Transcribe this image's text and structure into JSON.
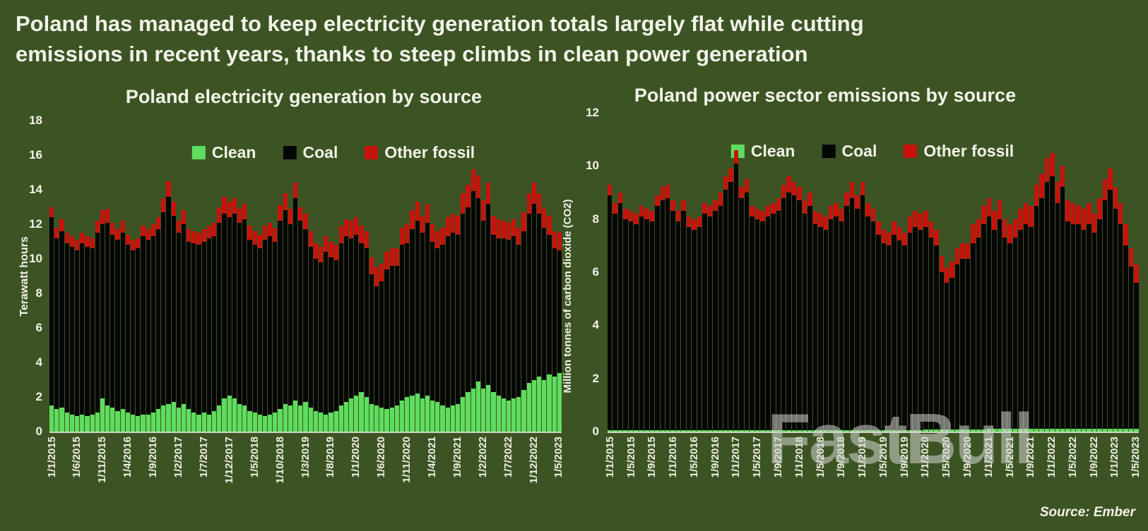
{
  "title": {
    "line1": "Poland has managed to keep electricity generation totals largely flat while cutting",
    "line2": "emissions in recent years, thanks to steep climbs in clean power generation"
  },
  "watermark": "FastBull",
  "source": "Source: Ember",
  "colors": {
    "background": "#3c5424",
    "clean": "#5edd5e",
    "coal": "#060606",
    "other": "#c8130c",
    "text": "#f2f3e9"
  },
  "chart_data": [
    {
      "type": "bar",
      "stacked": true,
      "title": "Poland electricity generation by source",
      "ylabel": "Terawatt hours",
      "xlabel": "",
      "ylim": [
        0,
        18
      ],
      "yticks": [
        0,
        2,
        4,
        6,
        8,
        10,
        12,
        14,
        16,
        18
      ],
      "grid": false,
      "legend_position": "top-center",
      "legend": [
        "Clean",
        "Coal",
        "Other fossil"
      ],
      "xtick_every": 5,
      "categories": [
        "1/1/2015",
        "1/2/2015",
        "1/3/2015",
        "1/4/2015",
        "1/5/2015",
        "1/6/2015",
        "1/7/2015",
        "1/8/2015",
        "1/9/2015",
        "1/10/2015",
        "1/11/2015",
        "1/12/2015",
        "1/1/2016",
        "1/2/2016",
        "1/3/2016",
        "1/4/2016",
        "1/5/2016",
        "1/6/2016",
        "1/7/2016",
        "1/8/2016",
        "1/9/2016",
        "1/10/2016",
        "1/11/2016",
        "1/12/2016",
        "1/1/2017",
        "1/2/2017",
        "1/3/2017",
        "1/4/2017",
        "1/5/2017",
        "1/6/2017",
        "1/7/2017",
        "1/8/2017",
        "1/9/2017",
        "1/10/2017",
        "1/11/2017",
        "1/12/2017",
        "1/1/2018",
        "1/2/2018",
        "1/3/2018",
        "1/4/2018",
        "1/5/2018",
        "1/6/2018",
        "1/7/2018",
        "1/8/2018",
        "1/9/2018",
        "1/10/2018",
        "1/11/2018",
        "1/12/2018",
        "1/1/2019",
        "1/2/2019",
        "1/3/2019",
        "1/4/2019",
        "1/5/2019",
        "1/6/2019",
        "1/7/2019",
        "1/8/2019",
        "1/9/2019",
        "1/10/2019",
        "1/11/2019",
        "1/12/2019",
        "1/1/2020",
        "1/2/2020",
        "1/3/2020",
        "1/4/2020",
        "1/5/2020",
        "1/6/2020",
        "1/7/2020",
        "1/8/2020",
        "1/9/2020",
        "1/10/2020",
        "1/11/2020",
        "1/12/2020",
        "1/1/2021",
        "1/2/2021",
        "1/3/2021",
        "1/4/2021",
        "1/5/2021",
        "1/6/2021",
        "1/7/2021",
        "1/8/2021",
        "1/9/2021",
        "1/10/2021",
        "1/11/2021",
        "1/12/2021",
        "1/1/2022",
        "1/2/2022",
        "1/3/2022",
        "1/4/2022",
        "1/5/2022",
        "1/6/2022",
        "1/7/2022",
        "1/8/2022",
        "1/9/2022",
        "1/10/2022",
        "1/11/2022",
        "1/12/2022",
        "1/1/2023",
        "1/2/2023",
        "1/3/2023",
        "1/4/2023",
        "1/5/2023"
      ],
      "series": [
        {
          "name": "Clean",
          "color_key": "clean",
          "values": [
            1.5,
            1.3,
            1.4,
            1.1,
            1.0,
            0.9,
            1.0,
            0.9,
            1.0,
            1.1,
            1.9,
            1.5,
            1.4,
            1.2,
            1.3,
            1.1,
            1.0,
            0.9,
            1.0,
            1.0,
            1.1,
            1.3,
            1.5,
            1.6,
            1.7,
            1.4,
            1.6,
            1.3,
            1.1,
            1.0,
            1.1,
            1.0,
            1.2,
            1.5,
            1.9,
            2.1,
            1.9,
            1.6,
            1.5,
            1.2,
            1.1,
            1.0,
            0.9,
            1.0,
            1.1,
            1.3,
            1.6,
            1.5,
            1.8,
            1.5,
            1.7,
            1.4,
            1.2,
            1.1,
            1.0,
            1.1,
            1.2,
            1.5,
            1.7,
            1.9,
            2.1,
            2.3,
            2.0,
            1.6,
            1.5,
            1.4,
            1.3,
            1.4,
            1.5,
            1.8,
            2.0,
            2.1,
            2.2,
            1.9,
            2.1,
            1.8,
            1.7,
            1.5,
            1.4,
            1.5,
            1.6,
            2.0,
            2.3,
            2.5,
            2.9,
            2.5,
            2.7,
            2.3,
            2.1,
            1.9,
            1.8,
            1.9,
            2.0,
            2.4,
            2.8,
            3.0,
            3.2,
            3.0,
            3.3,
            3.2,
            3.4
          ]
        },
        {
          "name": "Coal",
          "color_key": "coal",
          "values": [
            10.9,
            9.9,
            10.2,
            9.8,
            9.7,
            9.6,
            9.9,
            9.8,
            9.6,
            10.4,
            10.1,
            10.6,
            10.0,
            9.9,
            10.2,
            9.7,
            9.5,
            9.7,
            10.3,
            10.1,
            10.2,
            10.4,
            11.2,
            12.0,
            10.8,
            10.1,
            10.4,
            9.7,
            9.8,
            9.8,
            9.9,
            10.2,
            10.1,
            10.6,
            10.7,
            10.3,
            10.7,
            10.5,
            10.8,
            9.9,
            9.7,
            9.6,
            10.2,
            10.3,
            9.9,
            10.9,
            11.2,
            10.5,
            11.7,
            10.7,
            10.0,
            9.3,
            8.8,
            8.7,
            9.4,
            9.0,
            8.7,
            9.4,
            9.6,
            9.3,
            9.3,
            8.6,
            8.6,
            7.5,
            6.9,
            7.3,
            8.1,
            8.2,
            8.1,
            9.0,
            8.9,
            9.6,
            10.0,
            9.6,
            10.0,
            9.2,
            8.9,
            9.3,
            9.9,
            10.0,
            9.8,
            10.6,
            10.7,
            11.4,
            10.6,
            9.7,
            10.5,
            9.1,
            9.1,
            9.3,
            9.3,
            9.4,
            8.8,
            9.2,
            9.8,
            10.2,
            9.4,
            8.8,
            8.1,
            7.4,
            7.1
          ]
        },
        {
          "name": "Other fossil",
          "color_key": "other",
          "values": [
            0.6,
            0.6,
            0.7,
            0.6,
            0.6,
            0.6,
            0.6,
            0.6,
            0.6,
            0.7,
            0.8,
            0.8,
            0.7,
            0.6,
            0.7,
            0.6,
            0.6,
            0.6,
            0.6,
            0.6,
            0.7,
            0.7,
            0.8,
            0.9,
            0.8,
            0.7,
            0.8,
            0.7,
            0.7,
            0.7,
            0.7,
            0.7,
            0.8,
            0.9,
            1.0,
            0.9,
            0.9,
            0.8,
            0.9,
            0.8,
            0.8,
            0.8,
            0.8,
            0.8,
            0.8,
            0.9,
            1.0,
            0.9,
            0.9,
            0.8,
            0.9,
            0.9,
            0.9,
            0.9,
            0.9,
            0.9,
            0.9,
            1.0,
            1.0,
            1.0,
            1.0,
            1.0,
            1.0,
            1.0,
            1.1,
            1.0,
            1.0,
            1.0,
            1.0,
            1.0,
            1.1,
            1.1,
            1.1,
            1.0,
            1.1,
            1.0,
            1.0,
            1.0,
            1.1,
            1.1,
            1.1,
            1.2,
            1.3,
            1.3,
            1.3,
            1.2,
            1.2,
            1.1,
            1.1,
            1.0,
            1.0,
            1.0,
            1.0,
            1.1,
            1.2,
            1.2,
            1.2,
            1.1,
            1.1,
            1.0,
            1.0
          ]
        }
      ]
    },
    {
      "type": "bar",
      "stacked": true,
      "title": "Poland power sector emissions by source",
      "ylabel": "Million tonnes of carbon dioxide (CO2)",
      "xlabel": "",
      "ylim": [
        0,
        12
      ],
      "yticks": [
        0,
        2,
        4,
        6,
        8,
        10,
        12
      ],
      "grid": false,
      "legend_position": "top-center",
      "legend": [
        "Clean",
        "Coal",
        "Other fossil"
      ],
      "xtick_every": 4,
      "categories": [
        "1/1/2015",
        "1/2/2015",
        "1/3/2015",
        "1/4/2015",
        "1/5/2015",
        "1/6/2015",
        "1/7/2015",
        "1/8/2015",
        "1/9/2015",
        "1/10/2015",
        "1/11/2015",
        "1/12/2015",
        "1/1/2016",
        "1/2/2016",
        "1/3/2016",
        "1/4/2016",
        "1/5/2016",
        "1/6/2016",
        "1/7/2016",
        "1/8/2016",
        "1/9/2016",
        "1/10/2016",
        "1/11/2016",
        "1/12/2016",
        "1/1/2017",
        "1/2/2017",
        "1/3/2017",
        "1/4/2017",
        "1/5/2017",
        "1/6/2017",
        "1/7/2017",
        "1/8/2017",
        "1/9/2017",
        "1/10/2017",
        "1/11/2017",
        "1/12/2017",
        "1/1/2018",
        "1/2/2018",
        "1/3/2018",
        "1/4/2018",
        "1/5/2018",
        "1/6/2018",
        "1/7/2018",
        "1/8/2018",
        "1/9/2018",
        "1/10/2018",
        "1/11/2018",
        "1/12/2018",
        "1/1/2019",
        "1/2/2019",
        "1/3/2019",
        "1/4/2019",
        "1/5/2019",
        "1/6/2019",
        "1/7/2019",
        "1/8/2019",
        "1/9/2019",
        "1/10/2019",
        "1/11/2019",
        "1/12/2019",
        "1/1/2020",
        "1/2/2020",
        "1/3/2020",
        "1/4/2020",
        "1/5/2020",
        "1/6/2020",
        "1/7/2020",
        "1/8/2020",
        "1/9/2020",
        "1/10/2020",
        "1/11/2020",
        "1/12/2020",
        "1/1/2021",
        "1/2/2021",
        "1/3/2021",
        "1/4/2021",
        "1/5/2021",
        "1/6/2021",
        "1/7/2021",
        "1/8/2021",
        "1/9/2021",
        "1/10/2021",
        "1/11/2021",
        "1/12/2021",
        "1/1/2022",
        "1/2/2022",
        "1/3/2022",
        "1/4/2022",
        "1/5/2022",
        "1/6/2022",
        "1/7/2022",
        "1/8/2022",
        "1/9/2022",
        "1/10/2022",
        "1/11/2022",
        "1/12/2022",
        "1/1/2023",
        "1/2/2023",
        "1/3/2023",
        "1/4/2023",
        "1/5/2023"
      ],
      "series": [
        {
          "name": "Clean",
          "color_key": "clean",
          "values": [
            0.05,
            0.05,
            0.05,
            0.05,
            0.05,
            0.05,
            0.05,
            0.05,
            0.05,
            0.05,
            0.05,
            0.05,
            0.05,
            0.05,
            0.05,
            0.05,
            0.05,
            0.05,
            0.05,
            0.05,
            0.05,
            0.05,
            0.05,
            0.05,
            0.05,
            0.05,
            0.05,
            0.05,
            0.05,
            0.05,
            0.05,
            0.05,
            0.05,
            0.05,
            0.05,
            0.05,
            0.05,
            0.05,
            0.05,
            0.05,
            0.05,
            0.05,
            0.05,
            0.05,
            0.05,
            0.05,
            0.05,
            0.05,
            0.05,
            0.05,
            0.05,
            0.05,
            0.05,
            0.05,
            0.05,
            0.05,
            0.05,
            0.05,
            0.05,
            0.05,
            0.08,
            0.08,
            0.08,
            0.08,
            0.08,
            0.08,
            0.08,
            0.08,
            0.08,
            0.08,
            0.08,
            0.08,
            0.1,
            0.1,
            0.1,
            0.1,
            0.1,
            0.1,
            0.1,
            0.1,
            0.1,
            0.1,
            0.1,
            0.1,
            0.1,
            0.1,
            0.1,
            0.1,
            0.1,
            0.1,
            0.1,
            0.1,
            0.1,
            0.1,
            0.1,
            0.1,
            0.1,
            0.1,
            0.1,
            0.1,
            0.1
          ]
        },
        {
          "name": "Coal",
          "color_key": "coal",
          "values": [
            8.85,
            8.15,
            8.55,
            7.95,
            7.85,
            7.75,
            8.05,
            7.95,
            7.85,
            8.45,
            8.65,
            8.75,
            8.25,
            7.85,
            8.25,
            7.65,
            7.55,
            7.65,
            8.15,
            8.05,
            8.25,
            8.45,
            9.05,
            9.35,
            10.05,
            8.75,
            8.95,
            8.05,
            7.95,
            7.85,
            8.05,
            8.15,
            8.25,
            8.75,
            8.95,
            8.85,
            8.65,
            8.15,
            8.45,
            7.75,
            7.65,
            7.55,
            7.95,
            8.05,
            7.85,
            8.45,
            8.75,
            8.35,
            8.85,
            8.05,
            7.85,
            7.35,
            7.05,
            6.95,
            7.35,
            7.15,
            6.95,
            7.45,
            7.65,
            7.55,
            7.62,
            7.22,
            6.92,
            5.92,
            5.52,
            5.72,
            6.22,
            6.42,
            6.42,
            7.02,
            7.22,
            7.72,
            8.0,
            7.5,
            7.9,
            7.2,
            7.0,
            7.2,
            7.5,
            7.7,
            7.6,
            8.4,
            8.7,
            9.3,
            9.5,
            8.5,
            9.1,
            7.8,
            7.7,
            7.7,
            7.5,
            7.7,
            7.4,
            7.9,
            8.6,
            9.0,
            8.3,
            7.7,
            6.9,
            6.1,
            5.5
          ]
        },
        {
          "name": "Other fossil",
          "color_key": "other",
          "values": [
            0.4,
            0.4,
            0.4,
            0.4,
            0.4,
            0.4,
            0.4,
            0.4,
            0.4,
            0.4,
            0.5,
            0.5,
            0.4,
            0.4,
            0.4,
            0.4,
            0.4,
            0.4,
            0.4,
            0.4,
            0.4,
            0.5,
            0.5,
            0.5,
            0.5,
            0.4,
            0.5,
            0.4,
            0.4,
            0.4,
            0.4,
            0.4,
            0.5,
            0.5,
            0.6,
            0.5,
            0.5,
            0.5,
            0.5,
            0.5,
            0.5,
            0.5,
            0.5,
            0.5,
            0.5,
            0.5,
            0.6,
            0.5,
            0.5,
            0.5,
            0.5,
            0.5,
            0.5,
            0.5,
            0.5,
            0.5,
            0.5,
            0.6,
            0.6,
            0.6,
            0.6,
            0.6,
            0.6,
            0.6,
            0.6,
            0.6,
            0.6,
            0.6,
            0.6,
            0.7,
            0.7,
            0.7,
            0.7,
            0.7,
            0.7,
            0.7,
            0.7,
            0.7,
            0.8,
            0.8,
            0.8,
            0.8,
            0.9,
            0.9,
            0.9,
            0.8,
            0.8,
            0.8,
            0.8,
            0.7,
            0.8,
            0.8,
            0.7,
            0.8,
            0.8,
            0.8,
            0.8,
            0.8,
            0.8,
            0.7,
            0.7
          ]
        }
      ]
    }
  ]
}
